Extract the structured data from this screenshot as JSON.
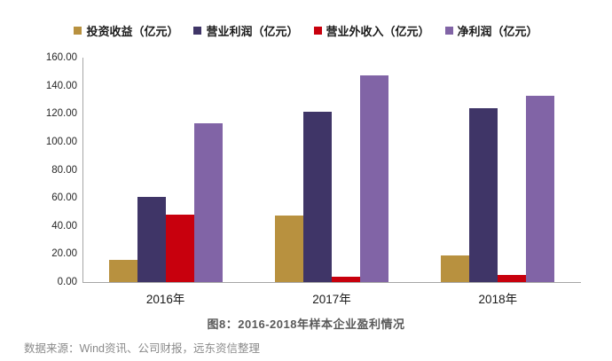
{
  "caption": "图8：2016-2018年样本企业盈利情况",
  "source_line": "数据来源：Wind资讯、公司财报，远东资信整理",
  "chart_data": {
    "type": "bar",
    "title": "图8：2016-2018年样本企业盈利情况",
    "xlabel": "",
    "ylabel": "",
    "categories": [
      "2016年",
      "2017年",
      "2018年"
    ],
    "series": [
      {
        "name": "投资收益（亿元）",
        "color": "#b8913f",
        "values": [
          16,
          47.5,
          19
        ]
      },
      {
        "name": "营业利润（亿元）",
        "color": "#3f3567",
        "values": [
          61,
          121.5,
          124
        ]
      },
      {
        "name": "营业外收入（亿元）",
        "color": "#c8000d",
        "values": [
          48,
          4,
          5
        ]
      },
      {
        "name": "净利润（亿元）",
        "color": "#8164a6",
        "values": [
          113.5,
          147.5,
          132.5
        ]
      }
    ],
    "ylim": [
      0,
      160
    ],
    "ytick_step": 20,
    "ytick_labels": [
      "0.00",
      "20.00",
      "40.00",
      "60.00",
      "80.00",
      "100.00",
      "120.00",
      "140.00",
      "160.00"
    ],
    "grid": false,
    "legend_position": "top",
    "axis_color": "#a6a6a6"
  }
}
